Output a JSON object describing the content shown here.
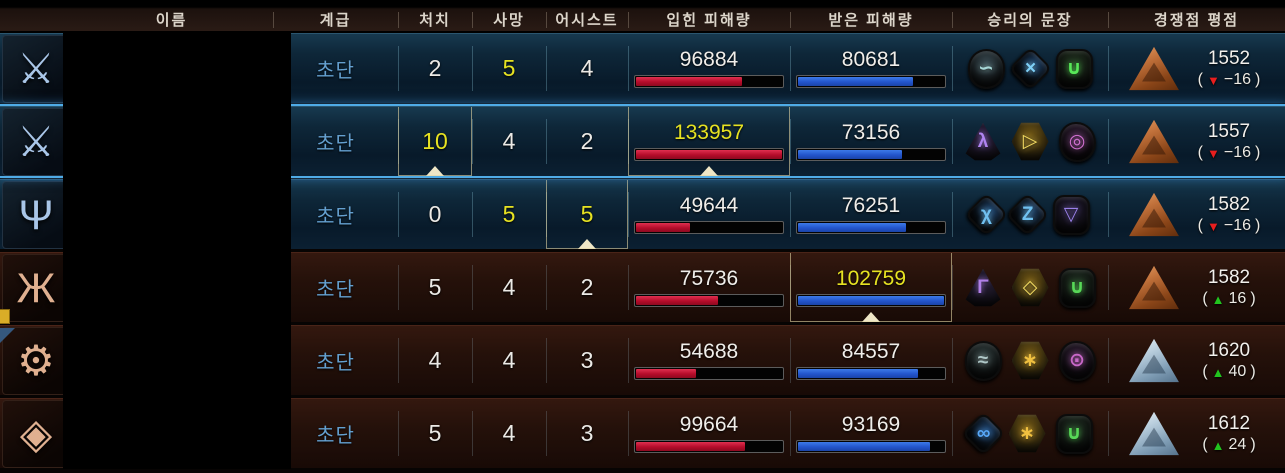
{
  "header": {
    "columns": [
      "이름",
      "계급",
      "처치",
      "사망",
      "어시스트",
      "입힌 피해량",
      "받은 피해량",
      "승리의 문장",
      "경쟁점 평점"
    ]
  },
  "scale": {
    "dealt_max": 133957,
    "taken_max": 102759
  },
  "colors": {
    "team_blue_bg": "#0e2739",
    "team_red_bg": "#25110a",
    "highlight_yellow": "#e6e222",
    "bar_red": "#b50c2a",
    "bar_blue": "#2355cc",
    "rank_text": "#64a0d0",
    "selected_border": "#4fabe6",
    "rating_down": "#e81e1e",
    "rating_up": "#22c41e",
    "badge_bronze": "#c0703a",
    "badge_silver": "#b9cedd"
  },
  "rows": [
    {
      "team": "blue",
      "selected": false,
      "class_icon": {
        "name": "crossed-blades-class-icon",
        "glyph": "⚔",
        "color": "#a9c6e8"
      },
      "rank": "초단",
      "kills": {
        "value": "2",
        "top": false,
        "best": false
      },
      "deaths": {
        "value": "5",
        "top": true,
        "best": false
      },
      "assists": {
        "value": "4",
        "top": false,
        "best": false
      },
      "dealt": {
        "value": 96884,
        "top": false,
        "best": false
      },
      "taken": {
        "value": 80681,
        "top": false,
        "best": false
      },
      "sigils": [
        {
          "name": "sigil-wave-rune-icon",
          "shape": "oval",
          "base": "#35454c",
          "glyph": "∽",
          "color": "#a8d8d8"
        },
        {
          "name": "sigil-cross-rune-icon",
          "shape": "diamond",
          "base": "#1d3f66",
          "glyph": "×",
          "color": "#7fd0f8"
        },
        {
          "name": "sigil-horseshoe-rune-icon",
          "shape": "square",
          "base": "#20301f",
          "glyph": "∪",
          "color": "#58e858"
        }
      ],
      "rating": {
        "badge": "bronze",
        "score": "1552",
        "direction": "down",
        "delta": "−16"
      }
    },
    {
      "team": "blue",
      "selected": true,
      "class_icon": {
        "name": "crossed-blades-class-icon",
        "glyph": "⚔",
        "color": "#a9c6e8"
      },
      "rank": "초단",
      "kills": {
        "value": "10",
        "top": true,
        "best": true
      },
      "deaths": {
        "value": "4",
        "top": false,
        "best": false
      },
      "assists": {
        "value": "2",
        "top": false,
        "best": false
      },
      "dealt": {
        "value": 133957,
        "top": true,
        "best": true
      },
      "taken": {
        "value": 73156,
        "top": false,
        "best": false
      },
      "sigils": [
        {
          "name": "sigil-bolt-rune-icon",
          "shape": "tri",
          "base": "#2a1f3d",
          "glyph": "λ",
          "color": "#b084f0"
        },
        {
          "name": "sigil-play-rune-icon",
          "shape": "hex",
          "base": "#6d5414",
          "glyph": "▷",
          "color": "#f0d860"
        },
        {
          "name": "sigil-spiral-rune-icon",
          "shape": "blob",
          "base": "#2c1c30",
          "glyph": "◎",
          "color": "#d070d0"
        }
      ],
      "rating": {
        "badge": "bronze",
        "score": "1557",
        "direction": "down",
        "delta": "−16"
      }
    },
    {
      "team": "blue",
      "selected": false,
      "class_icon": {
        "name": "harp-class-icon",
        "glyph": "Ψ",
        "color": "#a9c6e8"
      },
      "rank": "초단",
      "kills": {
        "value": "0",
        "top": false,
        "best": false
      },
      "deaths": {
        "value": "5",
        "top": true,
        "best": false
      },
      "assists": {
        "value": "5",
        "top": true,
        "best": true
      },
      "dealt": {
        "value": 49644,
        "top": false,
        "best": false
      },
      "taken": {
        "value": 76251,
        "top": false,
        "best": false
      },
      "sigils": [
        {
          "name": "sigil-bolt-rune-icon",
          "shape": "diamond",
          "base": "#1d3f66",
          "glyph": "χ",
          "color": "#70c0f0"
        },
        {
          "name": "sigil-zeta-rune-icon",
          "shape": "diamond",
          "base": "#1d3a5e",
          "glyph": "Z",
          "color": "#70c0f0"
        },
        {
          "name": "sigil-triangle-rune-icon",
          "shape": "square",
          "base": "#201a30",
          "glyph": "▽",
          "color": "#9a80e8"
        }
      ],
      "rating": {
        "badge": "bronze",
        "score": "1582",
        "direction": "down",
        "delta": "−16"
      }
    },
    {
      "team": "red",
      "selected": false,
      "class_icon": {
        "name": "lion-crest-class-icon",
        "glyph": "Ж",
        "color": "#e0b090"
      },
      "rank": "초단",
      "kills": {
        "value": "5",
        "top": false,
        "best": false
      },
      "deaths": {
        "value": "4",
        "top": false,
        "best": false
      },
      "assists": {
        "value": "2",
        "top": false,
        "best": false
      },
      "dealt": {
        "value": 75736,
        "top": false,
        "best": false
      },
      "taken": {
        "value": 102759,
        "top": true,
        "best": true
      },
      "sigils": [
        {
          "name": "sigil-gamma-rune-icon",
          "shape": "tri",
          "base": "#281f38",
          "glyph": "Γ",
          "color": "#b080e8"
        },
        {
          "name": "sigil-diamond-rune-icon",
          "shape": "hex",
          "base": "#6d5414",
          "glyph": "◇",
          "color": "#f0d860"
        },
        {
          "name": "sigil-horseshoe-rune-icon",
          "shape": "square",
          "base": "#1e2c20",
          "glyph": "∪",
          "color": "#58d858"
        }
      ],
      "rating": {
        "badge": "bronze",
        "score": "1582",
        "direction": "up",
        "delta": "16"
      }
    },
    {
      "team": "red",
      "selected": false,
      "class_icon": {
        "name": "winged-gear-class-icon",
        "glyph": "⚙",
        "color": "#e0b090"
      },
      "rank": "초단",
      "kills": {
        "value": "4",
        "top": false,
        "best": false
      },
      "deaths": {
        "value": "4",
        "top": false,
        "best": false
      },
      "assists": {
        "value": "3",
        "top": false,
        "best": false
      },
      "dealt": {
        "value": 54688,
        "top": false,
        "best": false
      },
      "taken": {
        "value": 84557,
        "top": false,
        "best": false
      },
      "sigils": [
        {
          "name": "sigil-lines-rune-icon",
          "shape": "oval",
          "base": "#2c3838",
          "glyph": "≈",
          "color": "#b0c8c8"
        },
        {
          "name": "sigil-star-rune-icon",
          "shape": "hex",
          "base": "#6d5414",
          "glyph": "∗",
          "color": "#f0c040"
        },
        {
          "name": "sigil-eye-rune-icon",
          "shape": "blob",
          "base": "#2a1c2e",
          "glyph": "⊙",
          "color": "#c868c8"
        }
      ],
      "rating": {
        "badge": "silver",
        "score": "1620",
        "direction": "up",
        "delta": "40"
      }
    },
    {
      "team": "red",
      "selected": false,
      "class_icon": {
        "name": "ornament-class-icon",
        "glyph": "◈",
        "color": "#e0b090"
      },
      "rank": "초단",
      "kills": {
        "value": "5",
        "top": false,
        "best": false
      },
      "deaths": {
        "value": "4",
        "top": false,
        "best": false
      },
      "assists": {
        "value": "3",
        "top": false,
        "best": false
      },
      "dealt": {
        "value": 99664,
        "top": false,
        "best": false
      },
      "taken": {
        "value": 93169,
        "top": false,
        "best": false
      },
      "sigils": [
        {
          "name": "sigil-chain-rune-icon",
          "shape": "diamond",
          "base": "#1d3f66",
          "glyph": "∞",
          "color": "#58a8f8"
        },
        {
          "name": "sigil-star-rune-icon",
          "shape": "hex",
          "base": "#6d5414",
          "glyph": "∗",
          "color": "#f0c040"
        },
        {
          "name": "sigil-horseshoe-rune-icon",
          "shape": "square",
          "base": "#1e2c20",
          "glyph": "∪",
          "color": "#58d858"
        }
      ],
      "rating": {
        "badge": "silver",
        "score": "1612",
        "direction": "up",
        "delta": "24"
      }
    }
  ]
}
